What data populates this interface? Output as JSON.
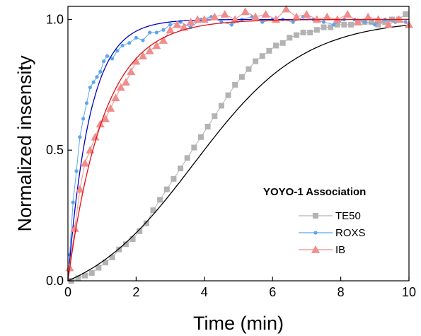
{
  "chart_data": {
    "type": "line",
    "xlabel": "Time (min)",
    "ylabel": "Normalized insensity",
    "xlim": [
      0,
      10
    ],
    "ylim": [
      0,
      1.05
    ],
    "x_ticks": [
      "0",
      "2",
      "4",
      "6",
      "8",
      "10"
    ],
    "y_ticks": [
      "0.0",
      "0.5",
      "1.0"
    ],
    "grid": false,
    "legend_title": "YOYO-1 Association",
    "legend_position": "bottom-right",
    "series": [
      {
        "name": "TE50",
        "color": "#b3b3b3",
        "marker": "square",
        "fit_color": "#000000",
        "fit": {
          "model": "sigmoid",
          "k": 0.62,
          "x0": 3.7
        },
        "x": [
          0.1,
          0.3,
          0.5,
          0.7,
          0.9,
          1.1,
          1.3,
          1.5,
          1.7,
          1.9,
          2.1,
          2.3,
          2.5,
          2.7,
          2.9,
          3.1,
          3.3,
          3.5,
          3.7,
          3.9,
          4.1,
          4.3,
          4.5,
          4.7,
          4.9,
          5.1,
          5.3,
          5.5,
          5.7,
          5.9,
          6.1,
          6.3,
          6.5,
          6.7,
          6.9,
          7.1,
          7.3,
          7.5,
          7.7,
          7.9,
          8.1,
          8.3,
          8.5,
          8.7,
          8.9,
          9.1,
          9.3,
          9.5,
          9.7,
          9.9
        ],
        "y": [
          0.0,
          0.01,
          0.02,
          0.03,
          0.05,
          0.07,
          0.09,
          0.12,
          0.14,
          0.16,
          0.19,
          0.22,
          0.27,
          0.31,
          0.35,
          0.39,
          0.43,
          0.47,
          0.51,
          0.55,
          0.59,
          0.63,
          0.67,
          0.71,
          0.75,
          0.78,
          0.81,
          0.84,
          0.86,
          0.88,
          0.9,
          0.91,
          0.93,
          0.94,
          0.95,
          0.95,
          0.96,
          0.97,
          0.97,
          0.98,
          0.98,
          0.98,
          0.99,
          0.99,
          0.99,
          0.98,
          0.99,
          1.0,
          1.0,
          1.02
        ]
      },
      {
        "name": "ROXS",
        "color": "#5aa6f0",
        "marker": "circle",
        "fit_color": "#0000c0",
        "fit": {
          "model": "exp",
          "k": 1.55
        },
        "x": [
          0.05,
          0.15,
          0.25,
          0.35,
          0.45,
          0.55,
          0.65,
          0.75,
          0.85,
          0.95,
          1.05,
          1.15,
          1.3,
          1.45,
          1.6,
          1.8,
          2.0,
          2.2,
          2.4,
          2.6,
          2.8,
          3.0,
          3.3,
          3.6,
          3.9,
          4.2,
          4.5,
          4.8,
          5.1,
          5.4,
          5.7,
          6.0,
          6.3,
          6.6,
          6.9,
          7.2,
          7.5,
          7.8,
          8.1,
          8.4,
          8.7,
          9.0,
          9.3,
          9.6,
          9.9
        ],
        "y": [
          0.1,
          0.3,
          0.42,
          0.55,
          0.62,
          0.68,
          0.74,
          0.76,
          0.78,
          0.8,
          0.84,
          0.86,
          0.85,
          0.88,
          0.9,
          0.91,
          0.93,
          0.92,
          0.95,
          0.95,
          0.96,
          0.98,
          0.99,
          0.97,
          1.0,
          1.01,
          0.99,
          0.98,
          1.0,
          1.01,
          0.99,
          1.0,
          1.0,
          0.99,
          1.01,
          1.0,
          0.99,
          0.98,
          1.0,
          1.0,
          0.99,
          0.98,
          1.0,
          0.99,
          0.99
        ]
      },
      {
        "name": "IB",
        "color": "#f08c8c",
        "marker": "triangle",
        "fit_color": "#e01010",
        "fit": {
          "model": "exp",
          "k": 0.95
        },
        "x": [
          0.05,
          0.2,
          0.35,
          0.5,
          0.65,
          0.8,
          0.95,
          1.1,
          1.25,
          1.4,
          1.55,
          1.7,
          1.85,
          2.0,
          2.2,
          2.4,
          2.6,
          2.8,
          3.0,
          3.2,
          3.4,
          3.6,
          3.8,
          4.0,
          4.3,
          4.6,
          4.9,
          5.2,
          5.5,
          5.8,
          6.1,
          6.4,
          6.7,
          7.0,
          7.3,
          7.6,
          7.9,
          8.2,
          8.5,
          8.8,
          9.1,
          9.4,
          9.7,
          10.0
        ],
        "y": [
          0.05,
          0.2,
          0.35,
          0.45,
          0.5,
          0.55,
          0.6,
          0.62,
          0.66,
          0.7,
          0.74,
          0.76,
          0.8,
          0.84,
          0.86,
          0.88,
          0.9,
          0.92,
          0.96,
          0.98,
          0.97,
          0.99,
          1.0,
          1.0,
          1.01,
          1.02,
          1.0,
          1.03,
          1.01,
          1.02,
          1.0,
          1.04,
          1.01,
          1.02,
          1.0,
          1.01,
          1.0,
          1.02,
          0.99,
          1.01,
          1.0,
          0.98,
          1.0,
          0.98
        ]
      }
    ]
  }
}
